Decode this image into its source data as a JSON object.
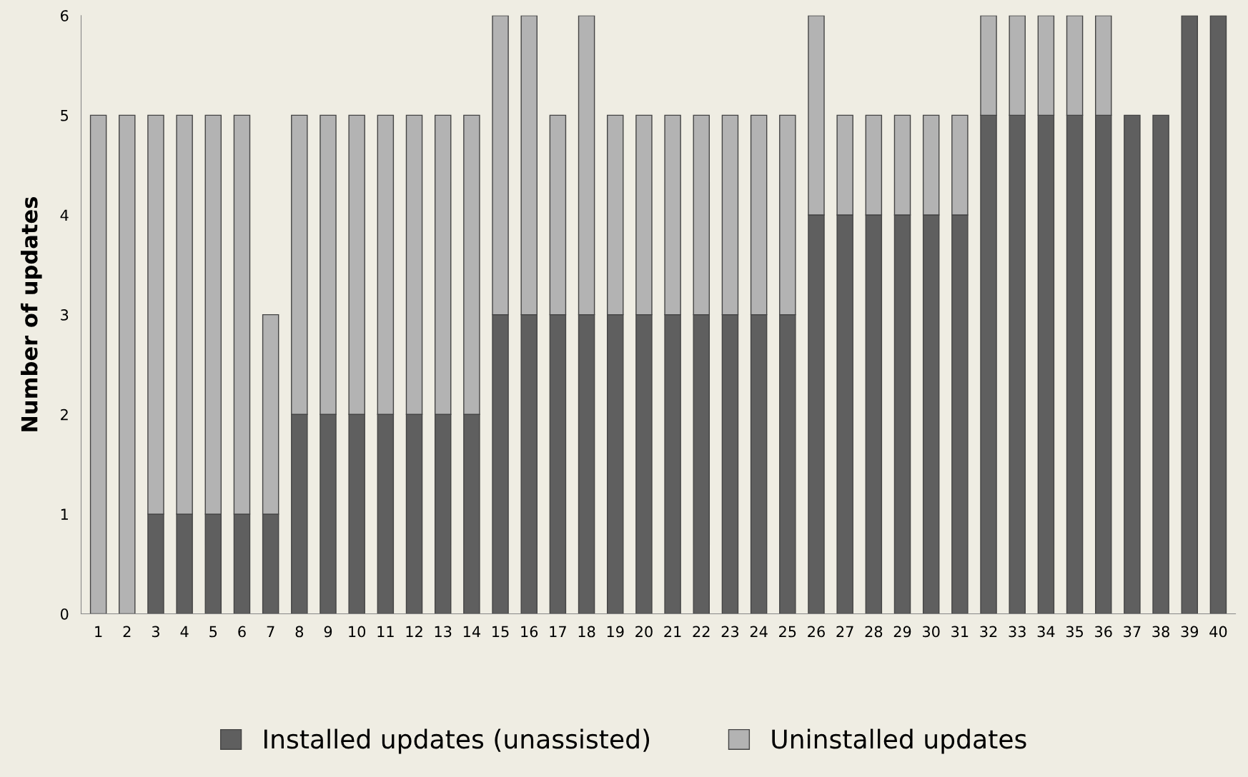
{
  "chart_data": {
    "type": "bar",
    "stacked": true,
    "ylabel": "Number of updates",
    "categories": [
      "1",
      "2",
      "3",
      "4",
      "5",
      "6",
      "7",
      "8",
      "9",
      "10",
      "11",
      "12",
      "13",
      "14",
      "15",
      "16",
      "17",
      "18",
      "19",
      "20",
      "21",
      "22",
      "23",
      "24",
      "25",
      "26",
      "27",
      "28",
      "29",
      "30",
      "31",
      "32",
      "33",
      "34",
      "35",
      "36",
      "37",
      "38",
      "39",
      "40"
    ],
    "series": [
      {
        "name": "Installed updates (unassisted)",
        "color": "#5f5f5f",
        "values": [
          0,
          0,
          1,
          1,
          1,
          1,
          1,
          2,
          2,
          2,
          2,
          2,
          2,
          2,
          3,
          3,
          3,
          3,
          3,
          3,
          3,
          3,
          3,
          3,
          3,
          4,
          4,
          4,
          4,
          4,
          4,
          5,
          5,
          5,
          5,
          5,
          5,
          5,
          6,
          6
        ]
      },
      {
        "name": "Uninstalled updates",
        "color": "#b3b3b3",
        "values": [
          5,
          5,
          4,
          4,
          4,
          4,
          2,
          3,
          3,
          3,
          3,
          3,
          3,
          3,
          3,
          3,
          2,
          3,
          2,
          2,
          2,
          2,
          2,
          2,
          2,
          2,
          1,
          1,
          1,
          1,
          1,
          1,
          1,
          1,
          1,
          1,
          0,
          0,
          0,
          0
        ]
      }
    ],
    "ylim": [
      0,
      6
    ],
    "yticks": [
      0,
      1,
      2,
      3,
      4,
      5,
      6
    ],
    "grid": false,
    "legend": "bottom"
  }
}
